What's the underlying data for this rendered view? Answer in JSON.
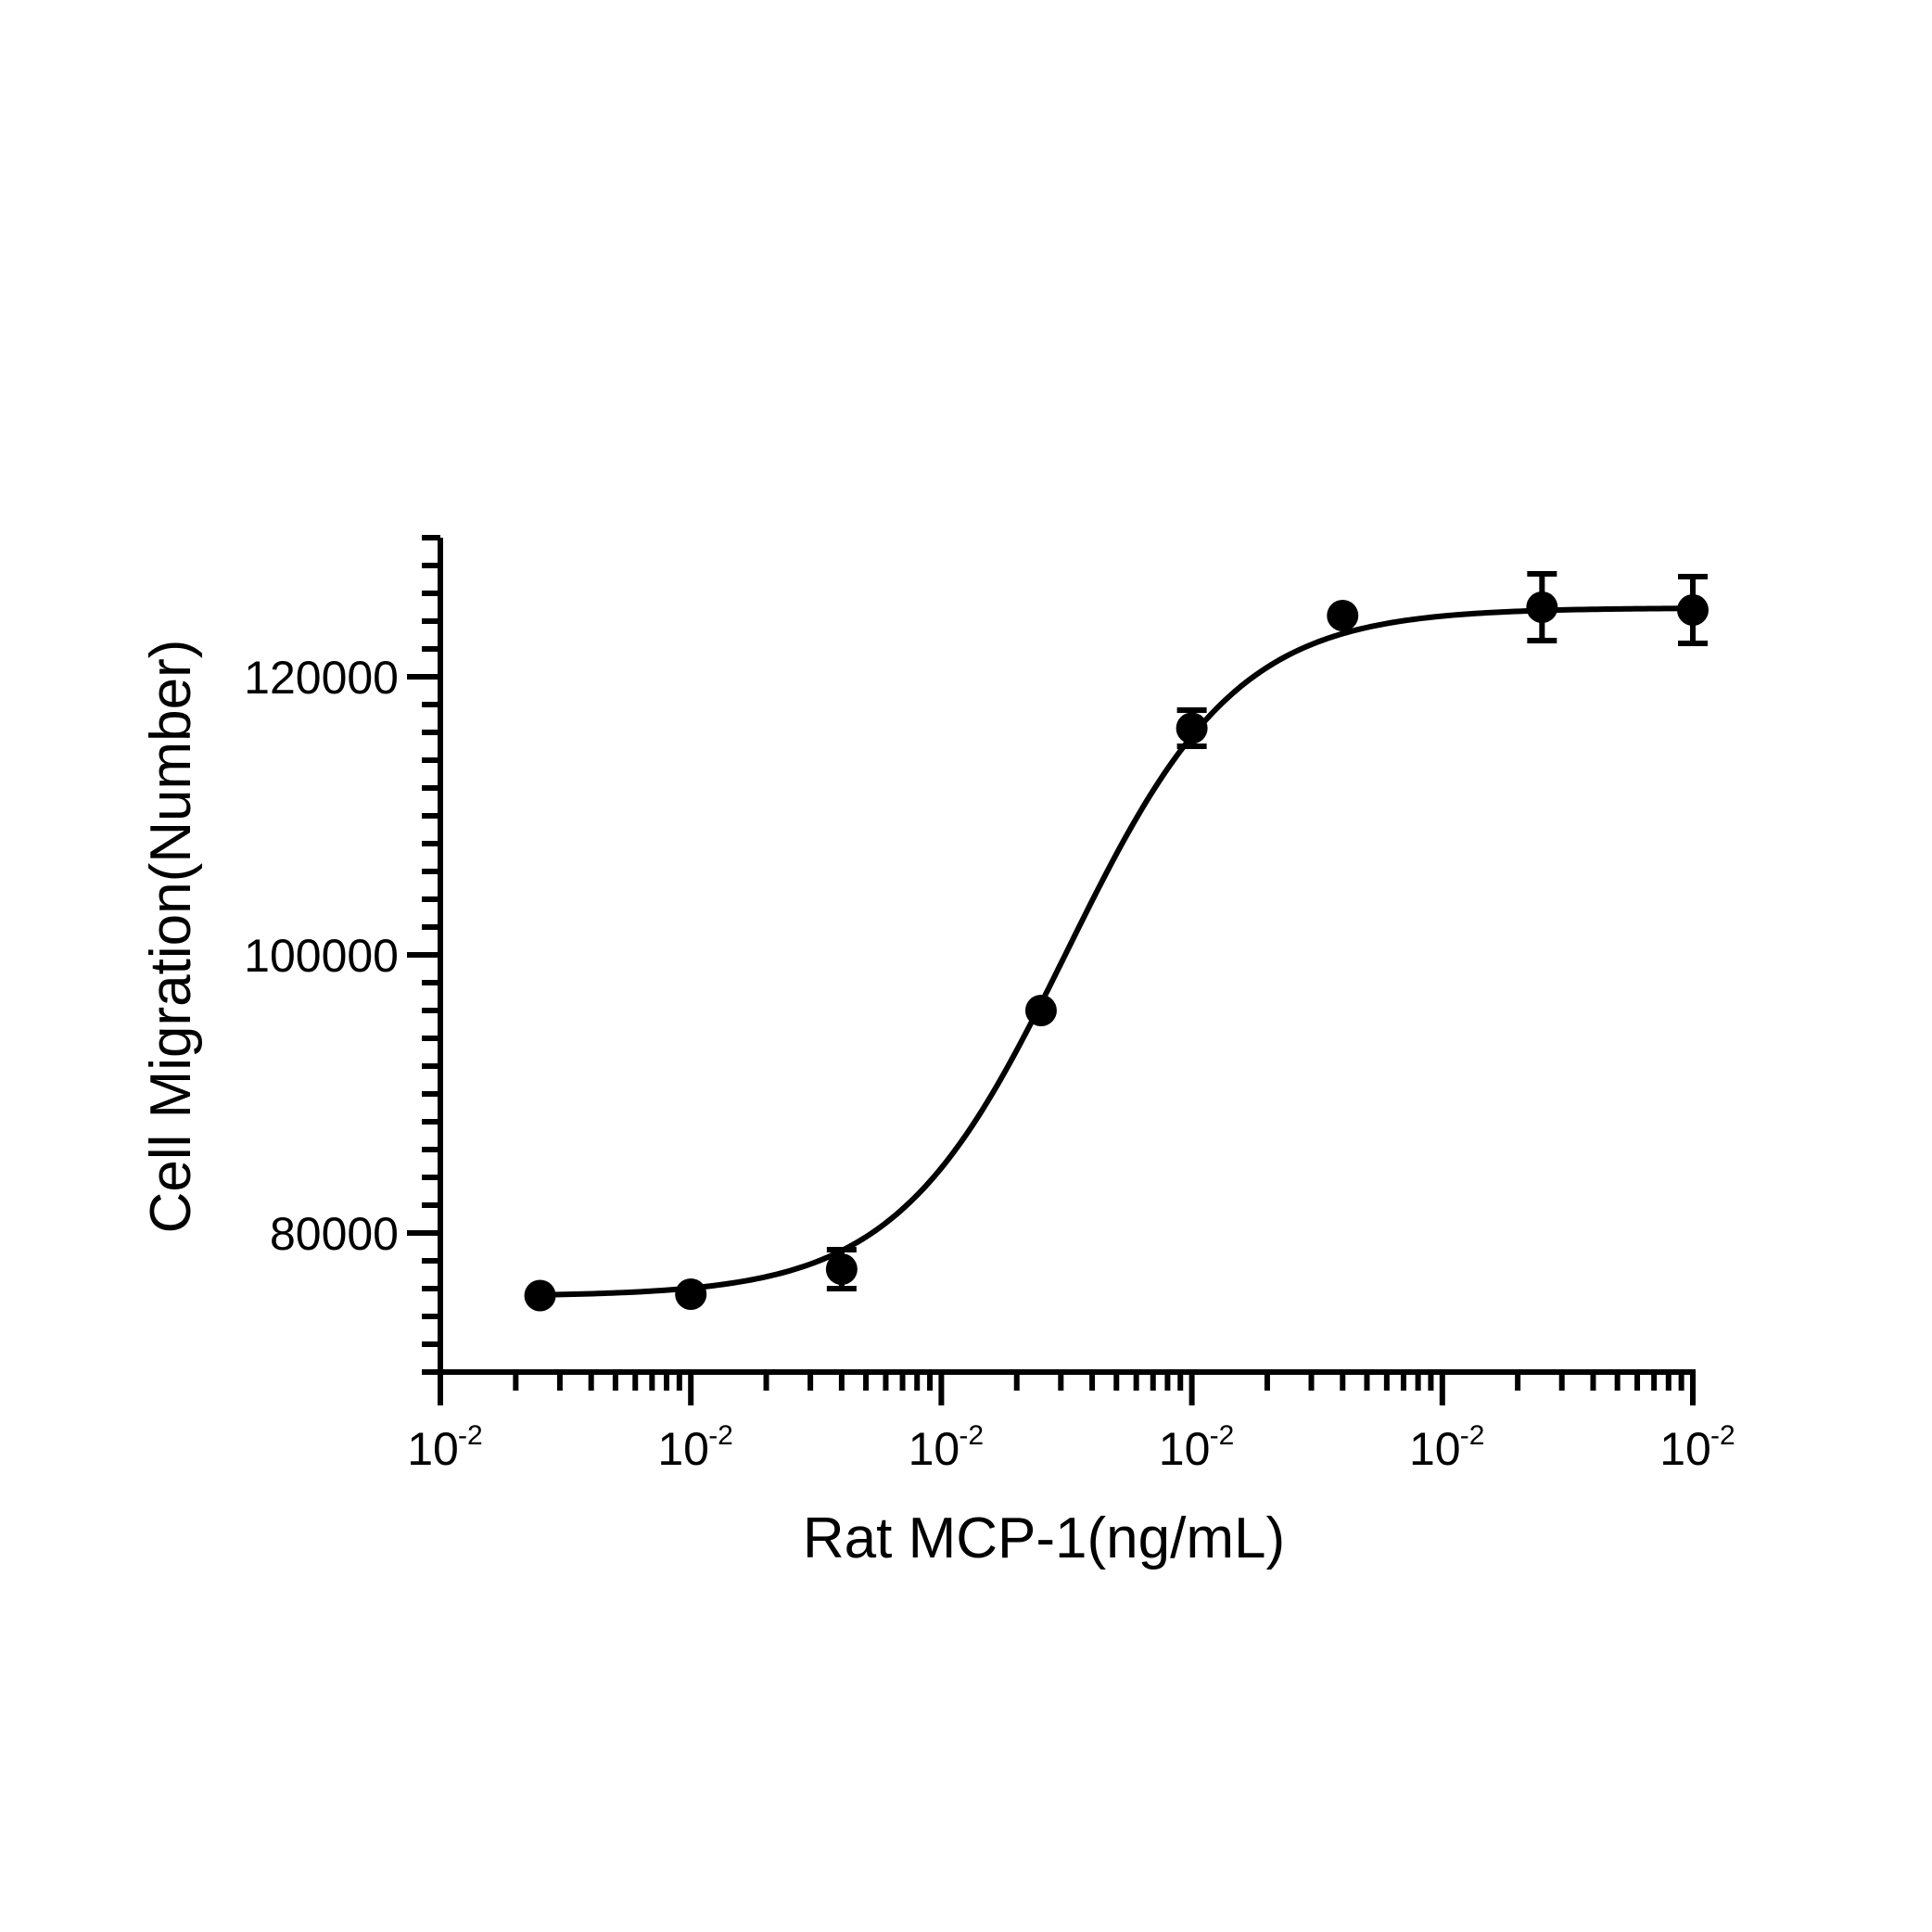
{
  "chart_data": {
    "type": "scatter",
    "xlabel": "Rat MCP-1(ng/mL)",
    "ylabel": "Cell Migration(Number)",
    "x_scale": "log",
    "x_decades": 5,
    "x_tick_labels": [
      {
        "base": "10",
        "exp": "-2"
      },
      {
        "base": "10",
        "exp": "-2"
      },
      {
        "base": "10",
        "exp": "-2"
      },
      {
        "base": "10",
        "exp": "-2"
      },
      {
        "base": "10",
        "exp": "-2"
      },
      {
        "base": "10",
        "exp": "-2"
      }
    ],
    "ylim": [
      70000,
      130000
    ],
    "y_ticks": [
      80000,
      100000,
      120000
    ],
    "y_tick_labels": [
      "80000",
      "100000",
      "120000"
    ],
    "y_minor_step": 2000,
    "points": [
      {
        "x_decade": 0.398,
        "y": 75500,
        "err": 0
      },
      {
        "x_decade": 1.0,
        "y": 75600,
        "err": 0
      },
      {
        "x_decade": 1.602,
        "y": 77400,
        "err": 1400
      },
      {
        "x_decade": 2.398,
        "y": 96000,
        "err": 0
      },
      {
        "x_decade": 3.0,
        "y": 116300,
        "err": 1300
      },
      {
        "x_decade": 3.602,
        "y": 124400,
        "err": 0
      },
      {
        "x_decade": 4.398,
        "y": 125000,
        "err": 2400
      },
      {
        "x_decade": 5.0,
        "y": 124800,
        "err": 2400
      }
    ],
    "fit_curve": {
      "model": "four-parameter logistic",
      "bottom": 75450,
      "top": 124950,
      "ec50_x_decade": 2.5,
      "hill_slope": 1.28
    },
    "grid": false,
    "legend": "none",
    "marker_color": "#000000"
  }
}
